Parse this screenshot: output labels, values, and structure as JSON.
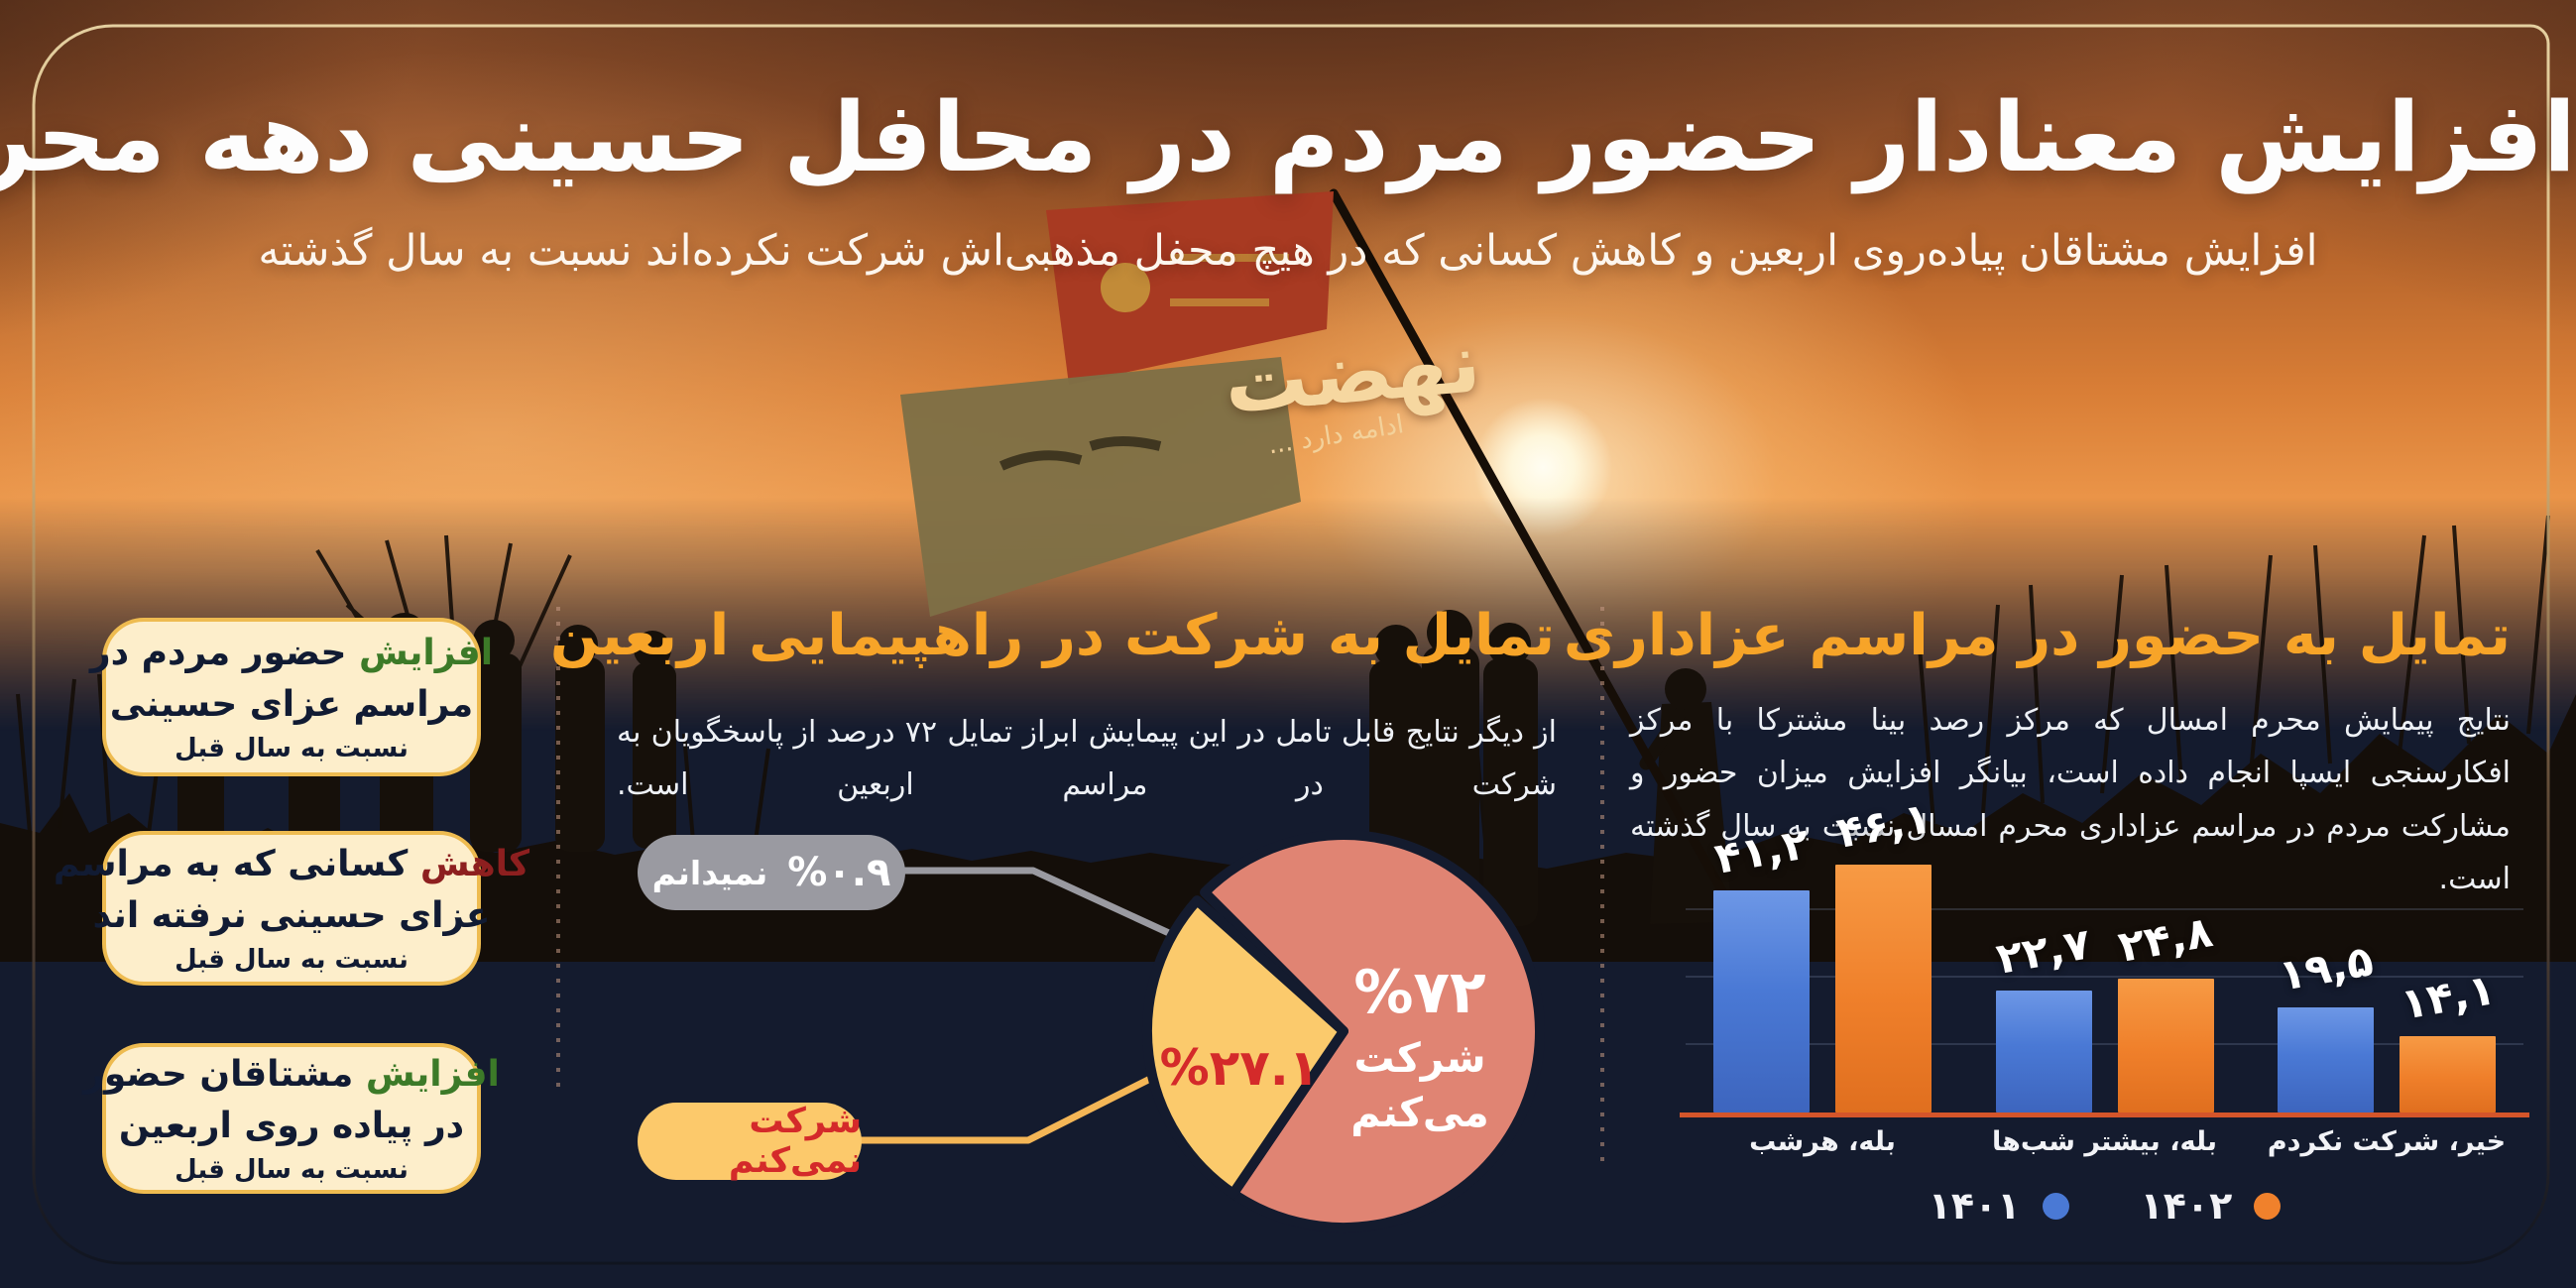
{
  "header": {
    "title": "افزایش معنادار حضور مردم در محافل حسینی دهه محرم",
    "subtitle": "افزایش مشتاقان پیاده‌روی اربعین و کاهش کسانی که در هیچ محفل مذهبی‌اش شرکت نکرده‌اند نسبت به سال گذشته",
    "logo_main": "نهضت",
    "logo_sub": "ادامه دارد ..."
  },
  "colors": {
    "background": "#141b2e",
    "accent_orange": "#f7a428",
    "bar_blue": "#4a79d5",
    "bar_orange": "#f0812c",
    "pie_main": "#e08473",
    "pie_secondary": "#fbca6c",
    "pill_gray": "#9a9aa1",
    "box_fill": "#fdeecb",
    "box_border": "#eebb50",
    "keyword_green": "#3c7a28",
    "keyword_red": "#8d1f1f",
    "value_red": "#d42a2a"
  },
  "highlight_boxes": [
    {
      "keyword": "افزایش",
      "keyword_color": "#3c7a28",
      "line1_rest": "حضور مردم در",
      "line2": "مراسم عزای حسینی",
      "line3": "نسبت به سال قبل"
    },
    {
      "keyword": "کاهش",
      "keyword_color": "#8d1f1f",
      "line1_rest": "کسانی که به مراسم",
      "line2": "عزای حسینی نرفته اند",
      "line3": "نسبت به سال قبل"
    },
    {
      "keyword": "افزایش",
      "keyword_color": "#3c7a28",
      "line1_rest": "مشتاقان حضور",
      "line2": "در پیاده روی اربعین",
      "line3": "نسبت به سال قبل"
    }
  ],
  "pie_section": {
    "title": "تمایل به شرکت در راهپیمایی اربعین",
    "paragraph": "از دیگر نتایج قابل تامل در این پیمایش ابراز تمایل ۷۲ درصد از پاسخگویان به شرکت در مراسم اربعین است.",
    "agree_value": "%۷۲",
    "agree_label_line1": "شرکت",
    "agree_label_line2": "می‌کنم",
    "disagree_value": "%۲۷.۱",
    "disagree_label": "شرکت نمی‌کنم",
    "unknown_label": "نمیدانم",
    "unknown_value": "%۰.۹"
  },
  "bar_section": {
    "title": "تمایل به حضور در مراسم عزاداری",
    "paragraph": "نتایج پیمایش محرم امسال که مرکز رصد بینا مشترکا با مرکز افکارسنجی ایسپا انجام داده است، بیانگر افزایش میزان حضور و مشارکت مردم در مراسم عزاداری محرم امسال نسبت به سال گذشته است.",
    "legend": [
      {
        "label": "۱۴۰۱",
        "color": "#4a79d5"
      },
      {
        "label": "۱۴۰۲",
        "color": "#f0812c"
      }
    ]
  },
  "chart_data": [
    {
      "type": "pie",
      "title": "تمایل به شرکت در راهپیمایی اربعین",
      "labels": [
        "شرکت می‌کنم",
        "شرکت نمی‌کنم",
        "نمیدانم"
      ],
      "values": [
        72,
        27.1,
        0.9
      ],
      "colors": [
        "#e08473",
        "#fbca6c",
        "none"
      ],
      "start_angle_deg": 135,
      "legend_position": "callouts"
    },
    {
      "type": "bar",
      "title": "تمایل به حضور در مراسم عزاداری",
      "categories": [
        "بله، هرشب",
        "بله، بیشتر شب‌ها",
        "خیر، شرکت نکردم"
      ],
      "series": [
        {
          "name": "۱۴۰۱",
          "color": "blue",
          "values": [
            41.2,
            22.7,
            19.5
          ],
          "labels": [
            "۴۱,۲",
            "۲۲,۷",
            "۱۹,۵"
          ]
        },
        {
          "name": "۱۴۰۲",
          "color": "orange",
          "values": [
            46.1,
            24.8,
            14.1
          ],
          "labels": [
            "۴۶,۱",
            "۲۴,۸",
            "۱۴,۱"
          ]
        }
      ],
      "ylim": [
        0,
        50
      ],
      "gridlines_at": [
        12.5,
        25,
        37.5
      ],
      "legend_position": "bottom"
    }
  ]
}
